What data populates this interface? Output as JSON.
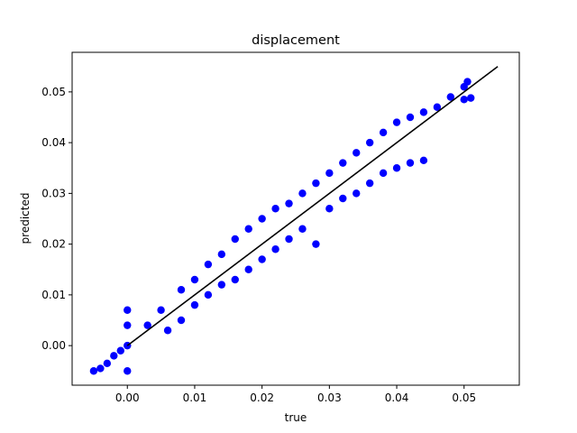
{
  "chart_data": {
    "type": "scatter",
    "title": "displacement",
    "xlabel": "true",
    "ylabel": "predicted",
    "xlim": [
      -0.0082,
      0.0582
    ],
    "ylim": [
      -0.0078,
      0.0578
    ],
    "xticks": [
      0.0,
      0.01,
      0.02,
      0.03,
      0.04,
      0.05
    ],
    "xtick_labels": [
      "0.00",
      "0.01",
      "0.02",
      "0.03",
      "0.04",
      "0.05"
    ],
    "yticks": [
      0.0,
      0.01,
      0.02,
      0.03,
      0.04,
      0.05
    ],
    "ytick_labels": [
      "0.00",
      "0.01",
      "0.02",
      "0.03",
      "0.04",
      "0.05"
    ],
    "grid": false,
    "legend": "none",
    "colors": {
      "points": "#0000ff",
      "reference_line": "#000000"
    },
    "reference_line": {
      "x": [
        0.0,
        0.055
      ],
      "y": [
        0.0,
        0.055
      ]
    },
    "series": [
      {
        "values": [
          {
            "x": -0.005,
            "y": -0.005
          },
          {
            "x": -0.004,
            "y": -0.0045
          },
          {
            "x": -0.003,
            "y": -0.0035
          },
          {
            "x": -0.002,
            "y": -0.002
          },
          {
            "x": -0.001,
            "y": -0.001
          },
          {
            "x": 0.0,
            "y": 0.0
          },
          {
            "x": 0.0,
            "y": 0.007
          },
          {
            "x": 0.0,
            "y": 0.004
          },
          {
            "x": 0.0,
            "y": -0.005
          },
          {
            "x": 0.003,
            "y": 0.004
          },
          {
            "x": 0.005,
            "y": 0.007
          },
          {
            "x": 0.006,
            "y": 0.003
          },
          {
            "x": 0.008,
            "y": 0.011
          },
          {
            "x": 0.008,
            "y": 0.005
          },
          {
            "x": 0.01,
            "y": 0.013
          },
          {
            "x": 0.01,
            "y": 0.008
          },
          {
            "x": 0.012,
            "y": 0.016
          },
          {
            "x": 0.012,
            "y": 0.01
          },
          {
            "x": 0.014,
            "y": 0.018
          },
          {
            "x": 0.014,
            "y": 0.012
          },
          {
            "x": 0.016,
            "y": 0.021
          },
          {
            "x": 0.016,
            "y": 0.013
          },
          {
            "x": 0.018,
            "y": 0.023
          },
          {
            "x": 0.018,
            "y": 0.015
          },
          {
            "x": 0.02,
            "y": 0.025
          },
          {
            "x": 0.02,
            "y": 0.017
          },
          {
            "x": 0.022,
            "y": 0.027
          },
          {
            "x": 0.022,
            "y": 0.019
          },
          {
            "x": 0.024,
            "y": 0.028
          },
          {
            "x": 0.024,
            "y": 0.021
          },
          {
            "x": 0.026,
            "y": 0.03
          },
          {
            "x": 0.026,
            "y": 0.023
          },
          {
            "x": 0.028,
            "y": 0.032
          },
          {
            "x": 0.028,
            "y": 0.02
          },
          {
            "x": 0.03,
            "y": 0.034
          },
          {
            "x": 0.03,
            "y": 0.027
          },
          {
            "x": 0.032,
            "y": 0.036
          },
          {
            "x": 0.032,
            "y": 0.029
          },
          {
            "x": 0.034,
            "y": 0.038
          },
          {
            "x": 0.034,
            "y": 0.03
          },
          {
            "x": 0.036,
            "y": 0.04
          },
          {
            "x": 0.036,
            "y": 0.032
          },
          {
            "x": 0.038,
            "y": 0.042
          },
          {
            "x": 0.038,
            "y": 0.034
          },
          {
            "x": 0.04,
            "y": 0.044
          },
          {
            "x": 0.04,
            "y": 0.035
          },
          {
            "x": 0.042,
            "y": 0.045
          },
          {
            "x": 0.042,
            "y": 0.036
          },
          {
            "x": 0.044,
            "y": 0.046
          },
          {
            "x": 0.044,
            "y": 0.0365
          },
          {
            "x": 0.046,
            "y": 0.047
          },
          {
            "x": 0.048,
            "y": 0.049
          },
          {
            "x": 0.05,
            "y": 0.051
          },
          {
            "x": 0.05,
            "y": 0.0485
          },
          {
            "x": 0.051,
            "y": 0.0488
          },
          {
            "x": 0.0505,
            "y": 0.052
          }
        ]
      }
    ]
  }
}
